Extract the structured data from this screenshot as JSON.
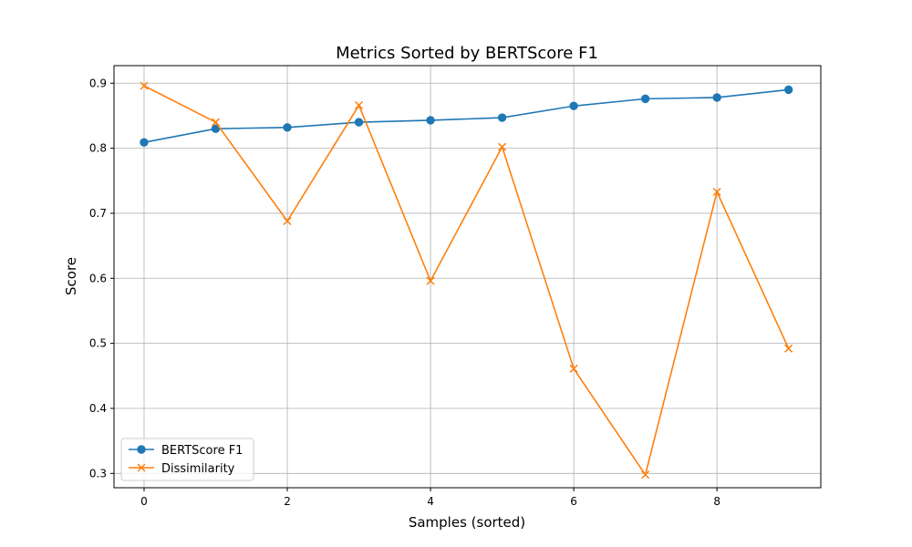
{
  "chart_data": {
    "type": "line",
    "title": "Metrics Sorted by BERTScore F1",
    "xlabel": "Samples (sorted)",
    "ylabel": "Score",
    "x": [
      0,
      1,
      2,
      3,
      4,
      5,
      6,
      7,
      8,
      9
    ],
    "xlim": [
      -0.42,
      9.45
    ],
    "ylim": [
      0.278,
      0.927
    ],
    "xticks": [
      0,
      2,
      4,
      6,
      8
    ],
    "yticks": [
      0.3,
      0.4,
      0.5,
      0.6,
      0.7,
      0.8,
      0.9
    ],
    "xtick_labels": [
      "0",
      "2",
      "4",
      "6",
      "8"
    ],
    "ytick_labels": [
      "0.3",
      "0.4",
      "0.5",
      "0.6",
      "0.7",
      "0.8",
      "0.9"
    ],
    "grid": true,
    "legend_position": "bottom-left",
    "series": [
      {
        "name": "BERTScore F1",
        "color": "#1f77b4",
        "marker": "circle",
        "values": [
          0.809,
          0.83,
          0.832,
          0.84,
          0.843,
          0.847,
          0.865,
          0.876,
          0.878,
          0.89
        ]
      },
      {
        "name": "Dissimilarity",
        "color": "#ff7f0e",
        "marker": "x",
        "values": [
          0.896,
          0.84,
          0.688,
          0.866,
          0.596,
          0.802,
          0.461,
          0.298,
          0.733,
          0.492
        ]
      }
    ]
  }
}
